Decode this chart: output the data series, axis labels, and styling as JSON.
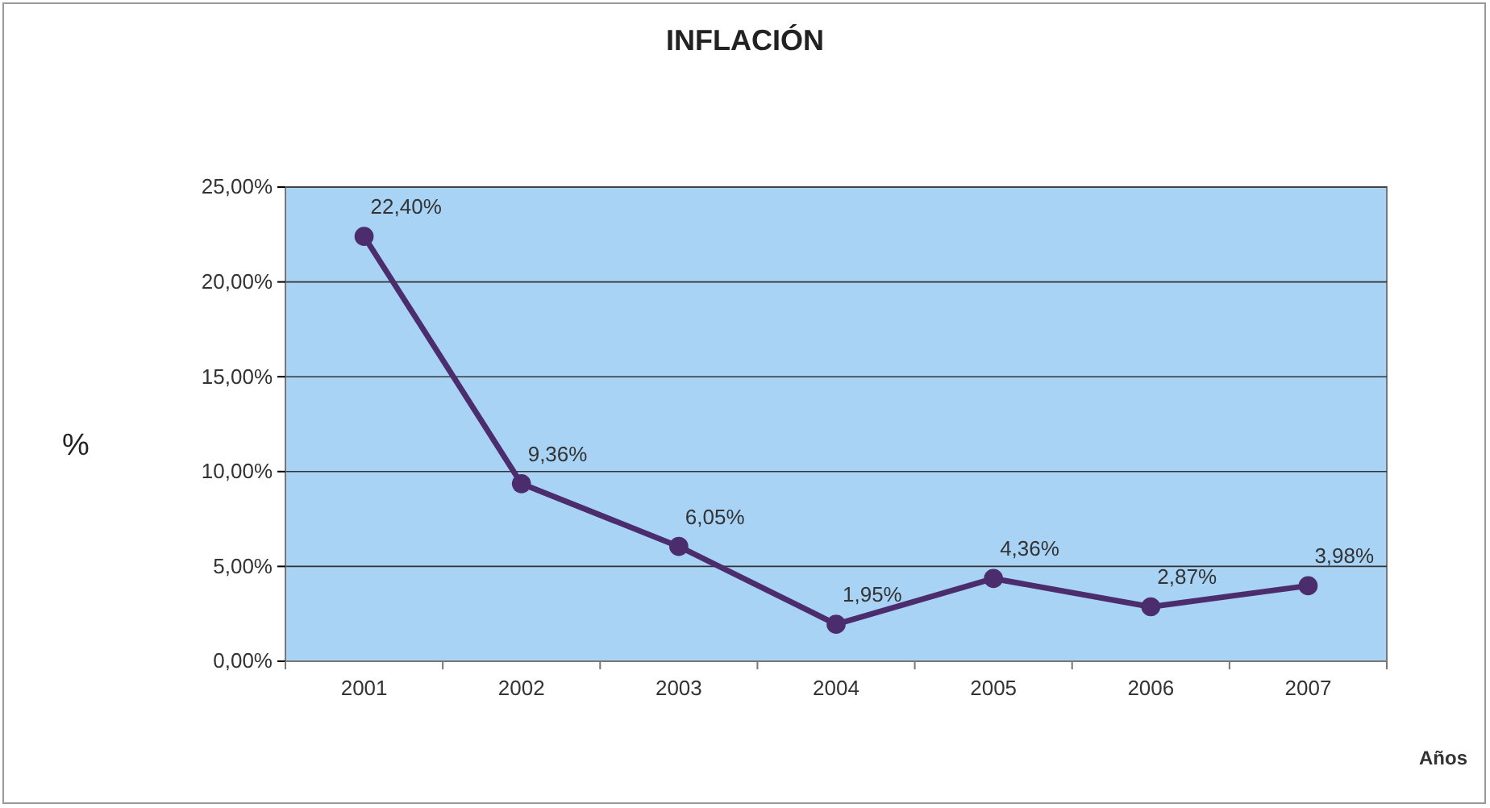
{
  "chart_data": {
    "type": "line",
    "title": "INFLACIÓN",
    "xlabel": "Años",
    "ylabel": "%",
    "categories": [
      "2001",
      "2002",
      "2003",
      "2004",
      "2005",
      "2006",
      "2007"
    ],
    "series": [
      {
        "color": "#4b2d6e",
        "values": [
          22.4,
          9.36,
          6.05,
          1.95,
          4.36,
          2.87,
          3.98
        ],
        "value_labels": [
          "22,40%",
          "9,36%",
          "6,05%",
          "1,95%",
          "4,36%",
          "2,87%",
          "3,98%"
        ]
      }
    ],
    "ylim": [
      0,
      25
    ],
    "yticks": [
      {
        "value": 0,
        "label": "0,00%"
      },
      {
        "value": 5,
        "label": "5,00%"
      },
      {
        "value": 10,
        "label": "10,00%"
      },
      {
        "value": 15,
        "label": "15,00%"
      },
      {
        "value": 20,
        "label": "20,00%"
      },
      {
        "value": 25,
        "label": "25,00%"
      }
    ],
    "grid": "y",
    "marker": "circle",
    "line_style": "solid"
  }
}
